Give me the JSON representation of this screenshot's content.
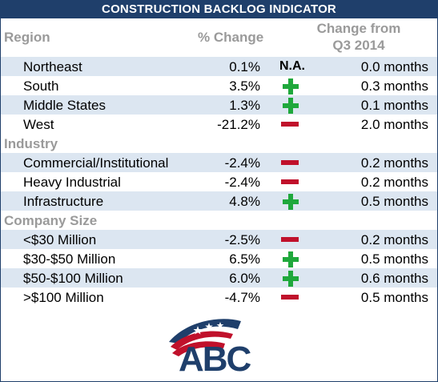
{
  "title": "CONSTRUCTION BACKLOG INDICATOR",
  "headers": {
    "region": "Region",
    "pct_change": "% Change",
    "change_line1": "Change from",
    "change_line2": "Q3 2014"
  },
  "sections": {
    "industry": "Industry",
    "company_size": "Company Size"
  },
  "rows": [
    {
      "label": "Northeast",
      "pct": "0.1%",
      "indicator": "na",
      "indicator_text": "N.A.",
      "months": "0.0 months"
    },
    {
      "label": "South",
      "pct": "3.5%",
      "indicator": "plus",
      "months": "0.3 months"
    },
    {
      "label": "Middle States",
      "pct": "1.3%",
      "indicator": "plus",
      "months": "0.1 months"
    },
    {
      "label": "West",
      "pct": "-21.2%",
      "indicator": "minus",
      "months": "2.0 months"
    },
    {
      "label": "Commercial/Institutional",
      "pct": "-2.4%",
      "indicator": "minus",
      "months": "0.2 months"
    },
    {
      "label": "Heavy Industrial",
      "pct": "-2.4%",
      "indicator": "minus",
      "months": "0.2 months"
    },
    {
      "label": "Infrastructure",
      "pct": "4.8%",
      "indicator": "plus",
      "months": "0.5 months"
    },
    {
      "label": "<$30 Million",
      "pct": "-2.5%",
      "indicator": "minus",
      "months": "0.2 months"
    },
    {
      "label": "$30-$50 Million",
      "pct": "6.5%",
      "indicator": "plus",
      "months": "0.5 months"
    },
    {
      "label": "$50-$100 Million",
      "pct": "6.0%",
      "indicator": "plus",
      "months": "0.6 months"
    },
    {
      "label": ">$100 Million",
      "pct": "-4.7%",
      "indicator": "minus",
      "months": "0.5 months"
    }
  ],
  "logo": {
    "text": "ABC"
  },
  "colors": {
    "title_bg": "#1f3f6b",
    "shade": "#dce6f1",
    "plus": "#1fa83c",
    "minus": "#c0112b",
    "header_text": "#9a9a9a"
  }
}
